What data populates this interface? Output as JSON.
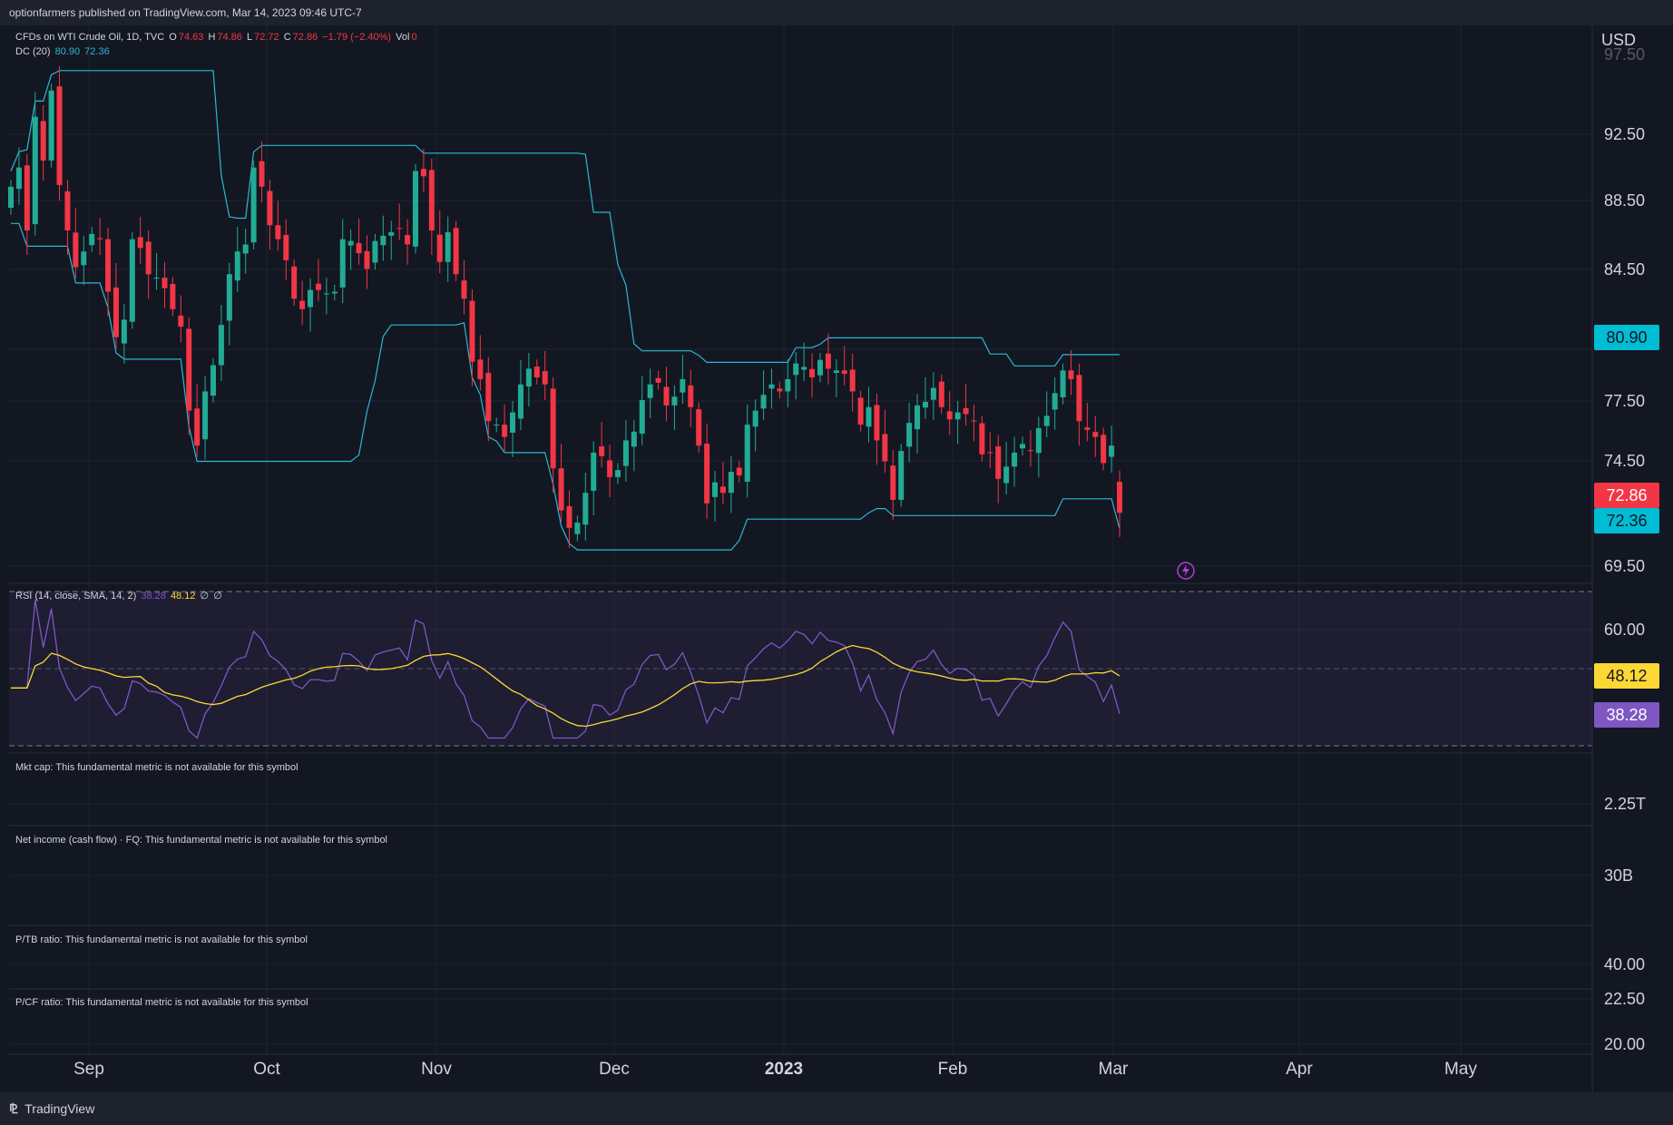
{
  "header": {
    "published": "optionfarmers published on TradingView.com, Mar 14, 2023 09:46 UTC-7"
  },
  "legend": {
    "symbol": "CFDs on WTI Crude Oil, 1D, TVC",
    "o_label": "O",
    "o_value": "74.63",
    "h_label": "H",
    "h_value": "74.86",
    "l_label": "L",
    "l_value": "72.72",
    "c_label": "C",
    "c_value": "72.86",
    "change": "−1.79 (−2.40%)",
    "vol_label": "Vol",
    "vol_value": "0",
    "dc_label": "DC (20)",
    "dc_upper": "80.90",
    "dc_lower": "72.36"
  },
  "rsi_legend": {
    "label": "RSI (14, close, SMA, 14, 2)",
    "rsi_value": "38.28",
    "sma_value": "48.12",
    "x1": "∅",
    "x2": "∅"
  },
  "fundamentals": [
    "Mkt cap: This fundamental metric is not available for this symbol",
    "Net income (cash flow) · FQ: This fundamental metric is not available for this symbol",
    "P/TB ratio: This fundamental metric is not available for this symbol",
    "P/CF ratio: This fundamental metric is not available for this symbol"
  ],
  "price_axis": {
    "currency": "USD",
    "ticks": [
      "97.50",
      "92.50",
      "88.50",
      "84.50",
      "77.50",
      "74.50",
      "69.50"
    ]
  },
  "badges": {
    "dc_upper": "80.90",
    "last_price": "72.86",
    "dc_lower": "72.36",
    "rsi_sma": "48.12",
    "rsi": "38.28"
  },
  "rsi_axis": {
    "ticks": [
      "60.00"
    ]
  },
  "fund_axis": {
    "ticks": [
      "2.25T",
      "30B",
      "40.00",
      "22.50",
      "20.00"
    ]
  },
  "time_axis": [
    "Sep",
    "Oct",
    "Nov",
    "Dec",
    "2023",
    "Feb",
    "Mar",
    "Apr",
    "May"
  ],
  "footer": {
    "brand": "TradingView",
    "logo": "TV-logo-icon"
  },
  "colors": {
    "up": "#22ab94",
    "down": "#f23645",
    "dc": "#2ab8d6",
    "rsi": "#7e57c2",
    "rsi_sma": "#fdd835",
    "bg": "#131722"
  },
  "chart_data": [
    {
      "type": "candlestick",
      "title": "CFDs on WTI Crude Oil, 1D, TVC",
      "x_range": [
        "2022-08-25",
        "2023-03-14"
      ],
      "ylim": [
        69.5,
        97.5
      ],
      "x_ticks": [
        "Sep",
        "Oct",
        "Nov",
        "Dec",
        "2023",
        "Feb",
        "Mar",
        "Apr",
        "May"
      ],
      "close": [
        91.5,
        92.6,
        89.0,
        95.5,
        93.0,
        97.0,
        91.6,
        89.0,
        86.9,
        87.8,
        88.8,
        88.5,
        85.5,
        82.9,
        83.9,
        88.5,
        88.0,
        86.5,
        86.3,
        85.7,
        84.5,
        83.5,
        78.7,
        76.7,
        79.8,
        81.3,
        83.6,
        86.5,
        87.8,
        88.2,
        92.6,
        91.5,
        89.3,
        88.5,
        87.3,
        85.1,
        84.5,
        85.6,
        85.6,
        85.4,
        85.5,
        88.5,
        88.4,
        87.7,
        86.8,
        88.4,
        88.7,
        88.9,
        89.1,
        88.2,
        92.4,
        92.1,
        89.0,
        87.2,
        88.9,
        86.5,
        85.1,
        81.5,
        80.5,
        78.1,
        77.9,
        77.2,
        78.6,
        80.2,
        81.1,
        80.6,
        80.2,
        75.4,
        73.0,
        72.0,
        72.3,
        74.0,
        76.3,
        76.1,
        74.9,
        75.3,
        77.0,
        77.5,
        79.3,
        80.2,
        80.3,
        79.0,
        79.5,
        80.5,
        78.9,
        76.7,
        73.4,
        74.6,
        74.0,
        75.2,
        75.0,
        77.9,
        78.7,
        79.6,
        80.2,
        79.8,
        80.5,
        81.4,
        81.2,
        80.6,
        81.6,
        81.1,
        81.0,
        80.8,
        79.8,
        77.9,
        78.9,
        77.0,
        75.8,
        73.6,
        76.4,
        78.0,
        79.0,
        79.2,
        80.0,
        78.9,
        78.2,
        78.6,
        78.5,
        78.1,
        76.2,
        76.3,
        74.8,
        75.5,
        76.3,
        76.8,
        76.4,
        77.7,
        78.4,
        79.7,
        81.0,
        80.5,
        78.1,
        77.6,
        77.2,
        75.7,
        76.7,
        72.86
      ],
      "series": [
        {
          "name": "DC (20)",
          "upper_last": 80.9,
          "lower_last": 72.36
        }
      ]
    },
    {
      "type": "line",
      "title": "RSI (14, close, SMA, 14, 2)",
      "ylim": [
        30,
        70
      ],
      "series": [
        {
          "name": "RSI",
          "last": 38.28
        },
        {
          "name": "SMA",
          "last": 48.12
        }
      ]
    }
  ]
}
